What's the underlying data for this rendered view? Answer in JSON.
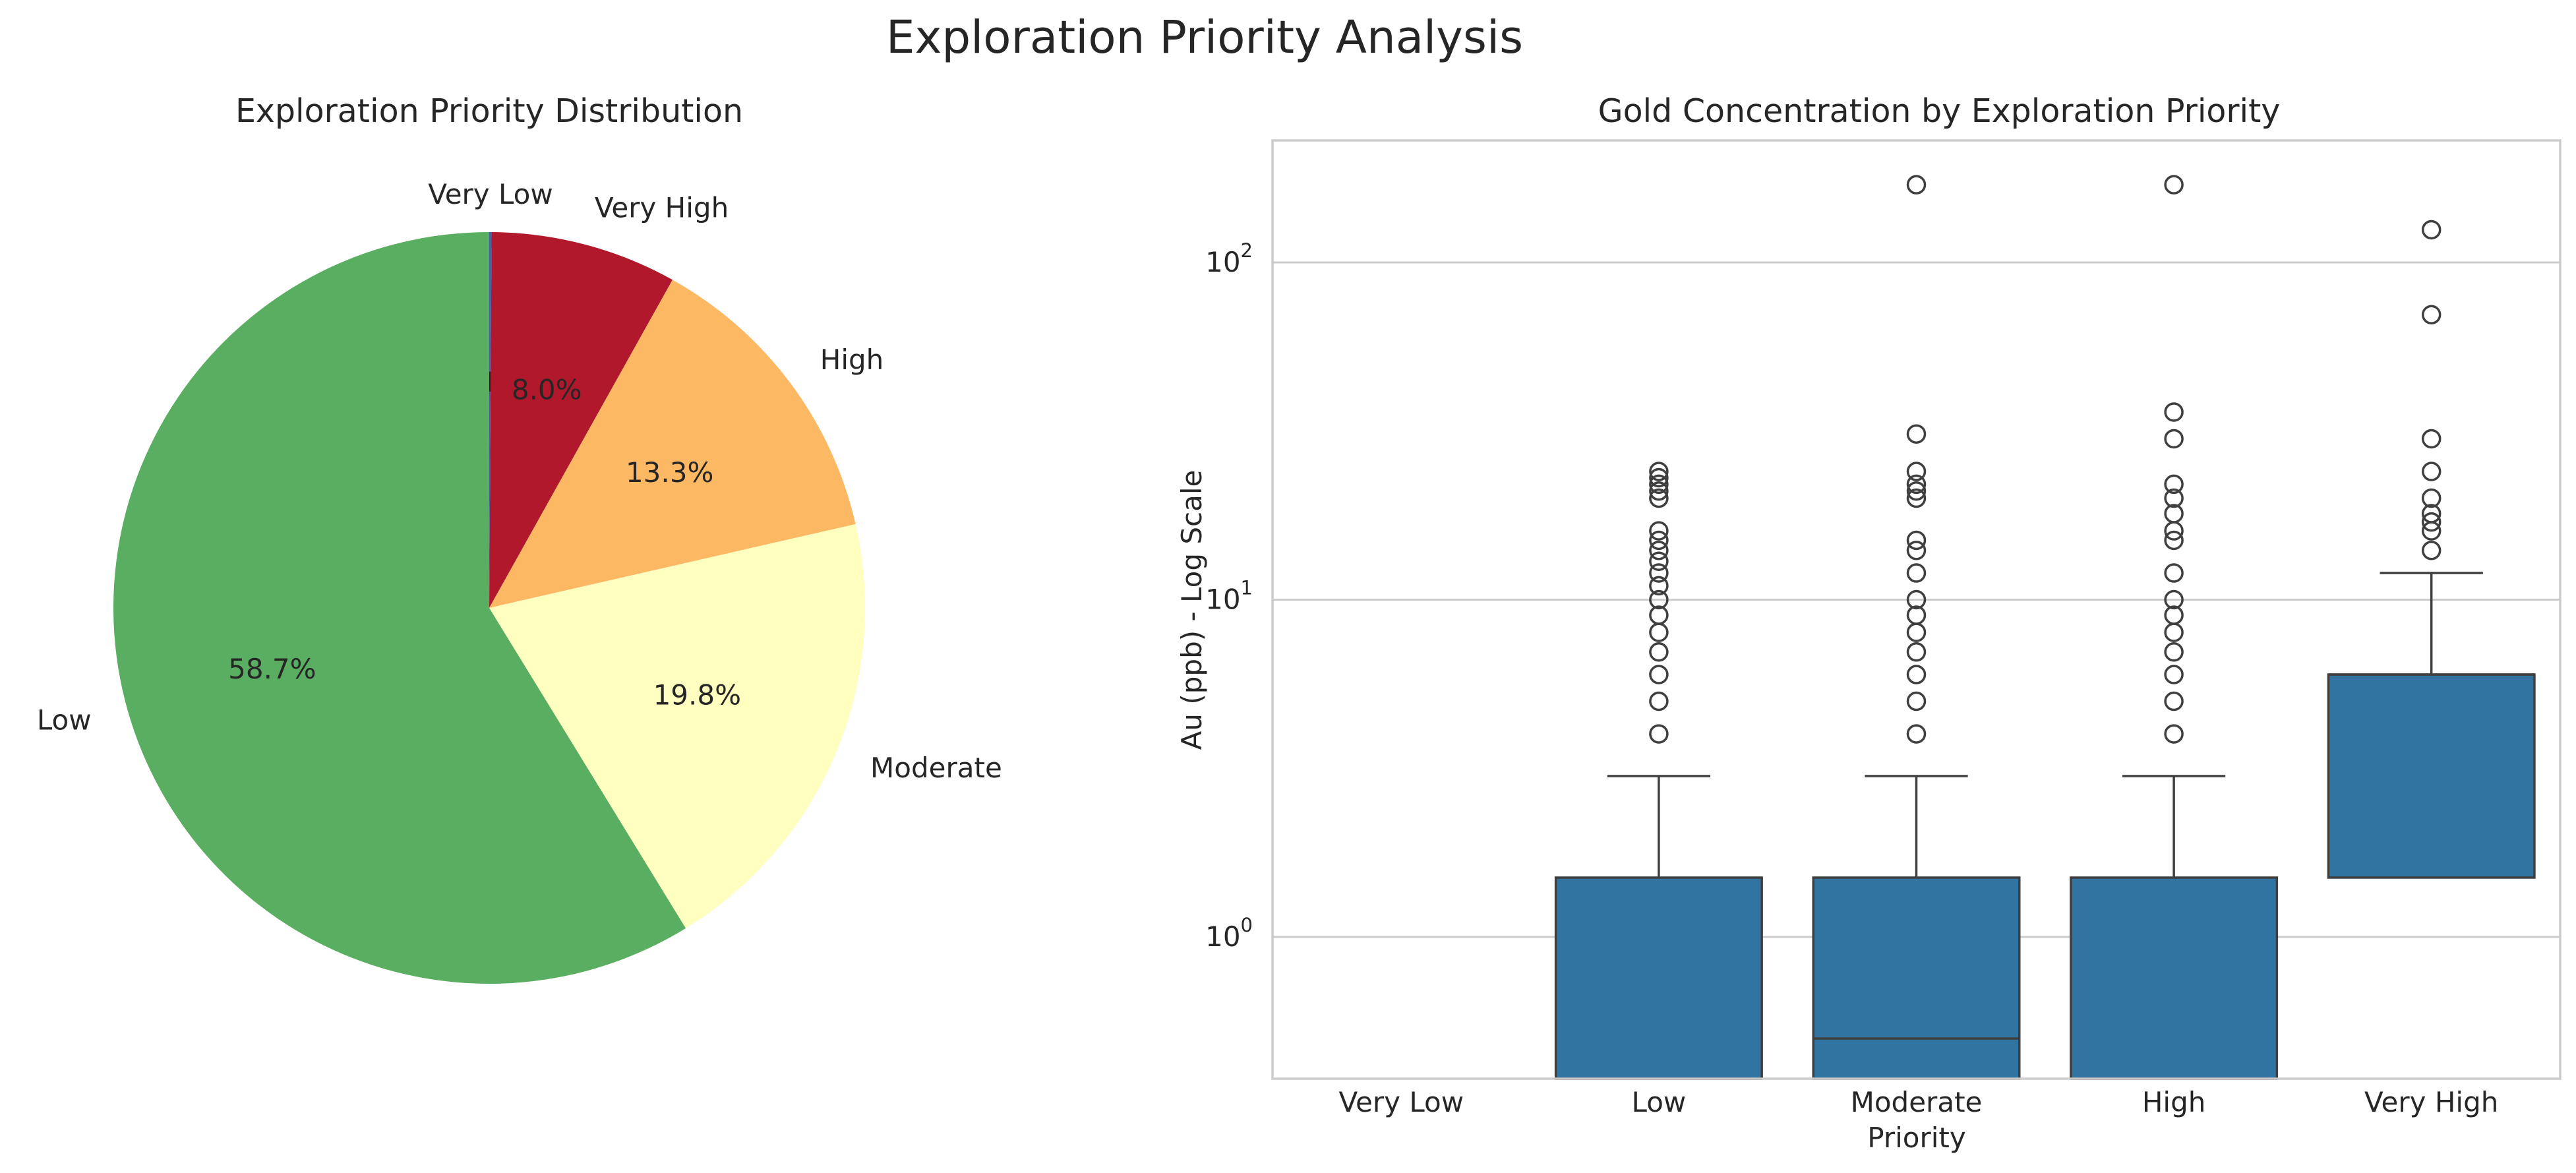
{
  "figure_title": "Exploration Priority Analysis",
  "colors": {
    "very_low": "#4a5fa8",
    "low": "#5aae61",
    "moderate": "#ffffbf",
    "high": "#fdb863",
    "very_high": "#b2182b",
    "box": "#3274a1",
    "grid": "#cccccc",
    "text": "#262626"
  },
  "chart_data": [
    {
      "type": "pie",
      "title": "Exploration Priority Distribution",
      "start_angle_deg": 90,
      "direction": "clockwise",
      "slices": [
        {
          "label": "Very Low",
          "value": 0.1,
          "pct_label": "0.1%",
          "color": "#4a5fa8"
        },
        {
          "label": "Very High",
          "value": 8.0,
          "pct_label": "8.0%",
          "color": "#b2182b"
        },
        {
          "label": "High",
          "value": 13.3,
          "pct_label": "13.3%",
          "color": "#fdb863"
        },
        {
          "label": "Moderate",
          "value": 19.8,
          "pct_label": "19.8%",
          "color": "#ffffbf"
        },
        {
          "label": "Low",
          "value": 58.7,
          "pct_label": "58.7%",
          "color": "#5aae61"
        }
      ]
    },
    {
      "type": "box",
      "title": "Gold Concentration by Exploration Priority",
      "xlabel": "Priority",
      "ylabel": "Au (ppb) - Log Scale",
      "yscale": "log",
      "ylim": [
        0.38,
        230
      ],
      "yticks": [
        {
          "value": 1,
          "base": "10",
          "exp": "0"
        },
        {
          "value": 10,
          "base": "10",
          "exp": "1"
        },
        {
          "value": 100,
          "base": "10",
          "exp": "2"
        }
      ],
      "grid": "y",
      "categories": [
        "Very Low",
        "Low",
        "Moderate",
        "High",
        "Very High"
      ],
      "boxes": [
        {
          "category": "Very Low",
          "empty": true
        },
        {
          "category": "Low",
          "q1": 0.38,
          "median": 0.38,
          "q3": 1.5,
          "whisker_low": 0.38,
          "whisker_high": 3,
          "outliers": [
            4,
            5,
            6,
            7,
            8,
            9,
            10,
            11,
            12,
            13,
            14,
            15,
            16,
            20,
            21,
            22,
            23,
            24
          ]
        },
        {
          "category": "Moderate",
          "q1": 0.38,
          "median": 0.5,
          "q3": 1.5,
          "whisker_low": 0.38,
          "whisker_high": 3,
          "outliers": [
            4,
            5,
            6,
            7,
            8,
            9,
            10,
            12,
            14,
            15,
            20,
            21,
            22,
            24,
            31,
            170
          ]
        },
        {
          "category": "High",
          "q1": 0.38,
          "median": 0.38,
          "q3": 1.5,
          "whisker_low": 0.38,
          "whisker_high": 3,
          "outliers": [
            4,
            5,
            6,
            7,
            8,
            9,
            10,
            12,
            15,
            16,
            18,
            20,
            22,
            30,
            36,
            170
          ]
        },
        {
          "category": "Very High",
          "q1": 1.5,
          "median": 6,
          "q3": 6,
          "whisker_low": 1.5,
          "whisker_high": 12,
          "outliers": [
            14,
            16,
            17,
            18,
            20,
            24,
            30,
            70,
            125
          ]
        }
      ]
    }
  ]
}
